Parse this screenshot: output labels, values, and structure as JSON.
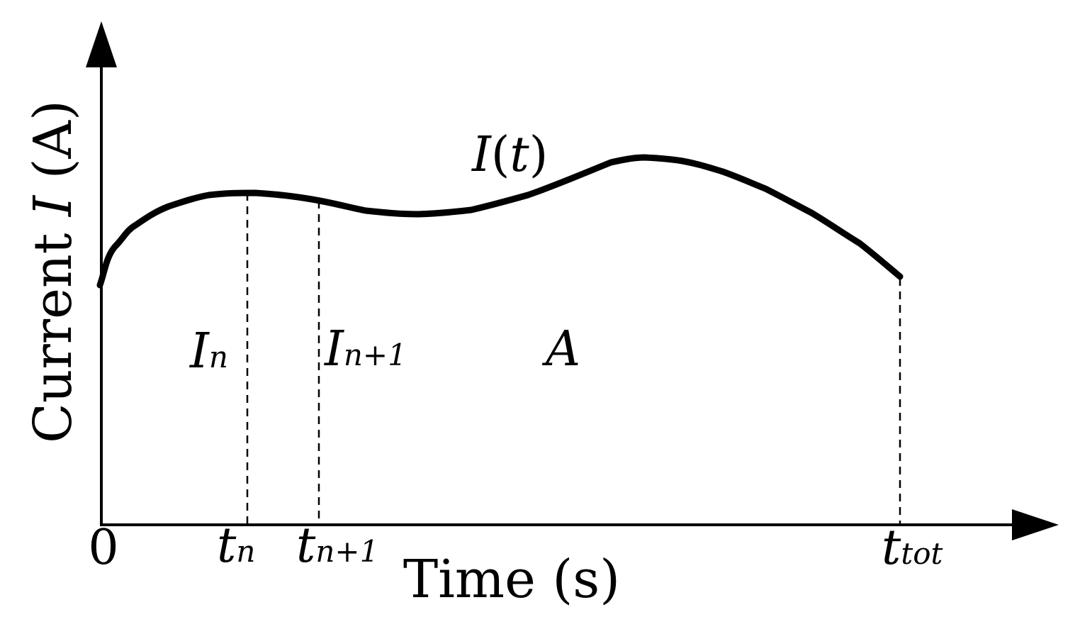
{
  "diagram": {
    "y_axis_title_prefix": "Current ",
    "y_axis_title_symbol": "I",
    "y_axis_title_suffix": " (A)",
    "x_axis_title": "Time (s)",
    "curve_label": {
      "symbol": "I",
      "open": "(",
      "variable": "t",
      "close": ")"
    },
    "area_label": "A",
    "ticks": {
      "origin": "0",
      "tn": {
        "base": "t",
        "sub": "n"
      },
      "tn1": {
        "base": "t",
        "sub": "n+1"
      },
      "ttot": {
        "base": "t",
        "sub": "tot"
      }
    },
    "sample_labels": {
      "In": {
        "base": "I",
        "sub": "n"
      },
      "In1": {
        "base": "I",
        "sub": "n+1"
      }
    },
    "colors": {
      "ink": "#000000",
      "background": "#ffffff"
    }
  }
}
